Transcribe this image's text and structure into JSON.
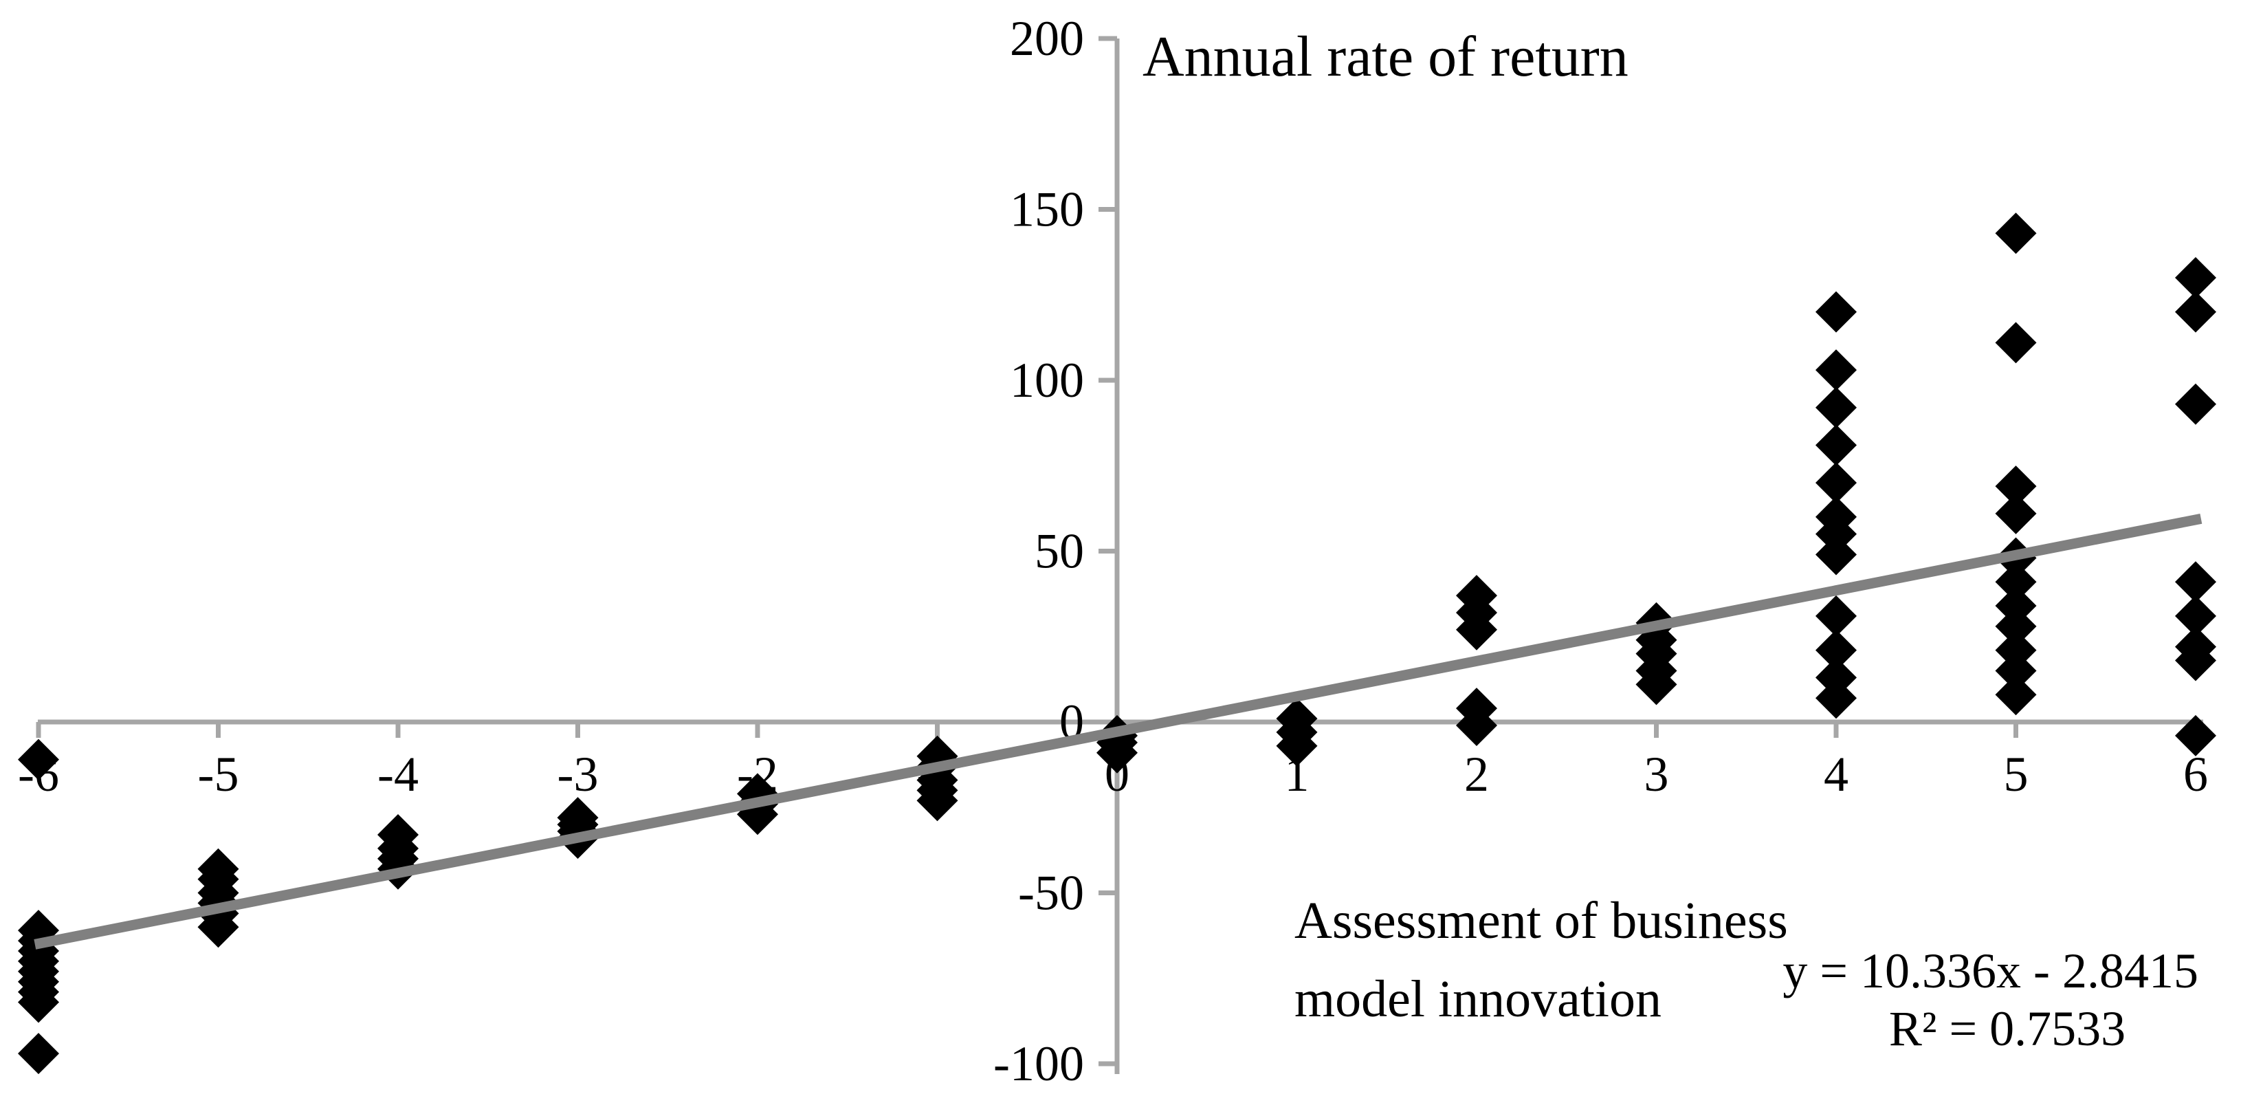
{
  "chart_data": {
    "type": "scatter",
    "title": "Annual rate of return",
    "xlabel": "Assessment of business model innovation",
    "xlabel_lines": [
      "Assessment of business",
      "model innovation"
    ],
    "ylabel": "",
    "annotations": {
      "equation": "y = 10.336x - 2.8415",
      "r_squared": "R² = 0.7533"
    },
    "x_ticks": [
      -6,
      -5,
      -4,
      -3,
      -2,
      -1,
      0,
      1,
      2,
      3,
      4,
      5,
      6
    ],
    "y_ticks": [
      200,
      150,
      100,
      50,
      0,
      -50,
      -100
    ],
    "xlim": [
      -6.3,
      6.3
    ],
    "ylim": [
      -112,
      210
    ],
    "grid": false,
    "legend": false,
    "marker": "diamond",
    "trendline": {
      "slope": 10.336,
      "intercept": -2.8415,
      "x_start": -6.02,
      "x_end": 6.03
    },
    "points": [
      [
        -6,
        -11
      ],
      [
        -6,
        -61
      ],
      [
        -6,
        -64
      ],
      [
        -6,
        -67
      ],
      [
        -6,
        -70
      ],
      [
        -6,
        -73
      ],
      [
        -6,
        -76
      ],
      [
        -6,
        -79
      ],
      [
        -6,
        -82
      ],
      [
        -6,
        -97
      ],
      [
        -5,
        -43
      ],
      [
        -5,
        -46
      ],
      [
        -5,
        -50
      ],
      [
        -5,
        -53
      ],
      [
        -5,
        -56
      ],
      [
        -5,
        -60
      ],
      [
        -4,
        -33
      ],
      [
        -4,
        -37
      ],
      [
        -4,
        -40
      ],
      [
        -4,
        -43
      ],
      [
        -3,
        -28
      ],
      [
        -3,
        -30
      ],
      [
        -3,
        -32
      ],
      [
        -3,
        -34
      ],
      [
        -2,
        -21
      ],
      [
        -2,
        -24
      ],
      [
        -2,
        -27
      ],
      [
        -1,
        -10
      ],
      [
        -1,
        -13
      ],
      [
        -1,
        -17
      ],
      [
        -1,
        -20
      ],
      [
        -1,
        -23
      ],
      [
        0,
        -4
      ],
      [
        0,
        -6
      ],
      [
        0,
        -9
      ],
      [
        1,
        1
      ],
      [
        1,
        -3
      ],
      [
        1,
        -7
      ],
      [
        2,
        37
      ],
      [
        2,
        32
      ],
      [
        2,
        27
      ],
      [
        2,
        4
      ],
      [
        2,
        -1
      ],
      [
        3,
        29
      ],
      [
        3,
        24
      ],
      [
        3,
        20
      ],
      [
        3,
        15
      ],
      [
        3,
        11
      ],
      [
        4,
        120
      ],
      [
        4,
        103
      ],
      [
        4,
        92
      ],
      [
        4,
        81
      ],
      [
        4,
        70
      ],
      [
        4,
        60
      ],
      [
        4,
        55
      ],
      [
        4,
        49
      ],
      [
        4,
        31
      ],
      [
        4,
        21
      ],
      [
        4,
        13
      ],
      [
        4,
        7
      ],
      [
        5,
        143
      ],
      [
        5,
        111
      ],
      [
        5,
        69
      ],
      [
        5,
        61
      ],
      [
        5,
        48
      ],
      [
        5,
        41
      ],
      [
        5,
        34
      ],
      [
        5,
        28
      ],
      [
        5,
        21
      ],
      [
        5,
        15
      ],
      [
        5,
        8
      ],
      [
        6,
        130
      ],
      [
        6,
        120
      ],
      [
        6,
        93
      ],
      [
        6,
        41
      ],
      [
        6,
        31
      ],
      [
        6,
        22
      ],
      [
        6,
        18
      ],
      [
        6,
        -4
      ]
    ],
    "colors": {
      "marker": "#000000",
      "trendline": "#808080",
      "axis": "#a6a6a6",
      "text": "#000000",
      "background": "#ffffff"
    }
  }
}
